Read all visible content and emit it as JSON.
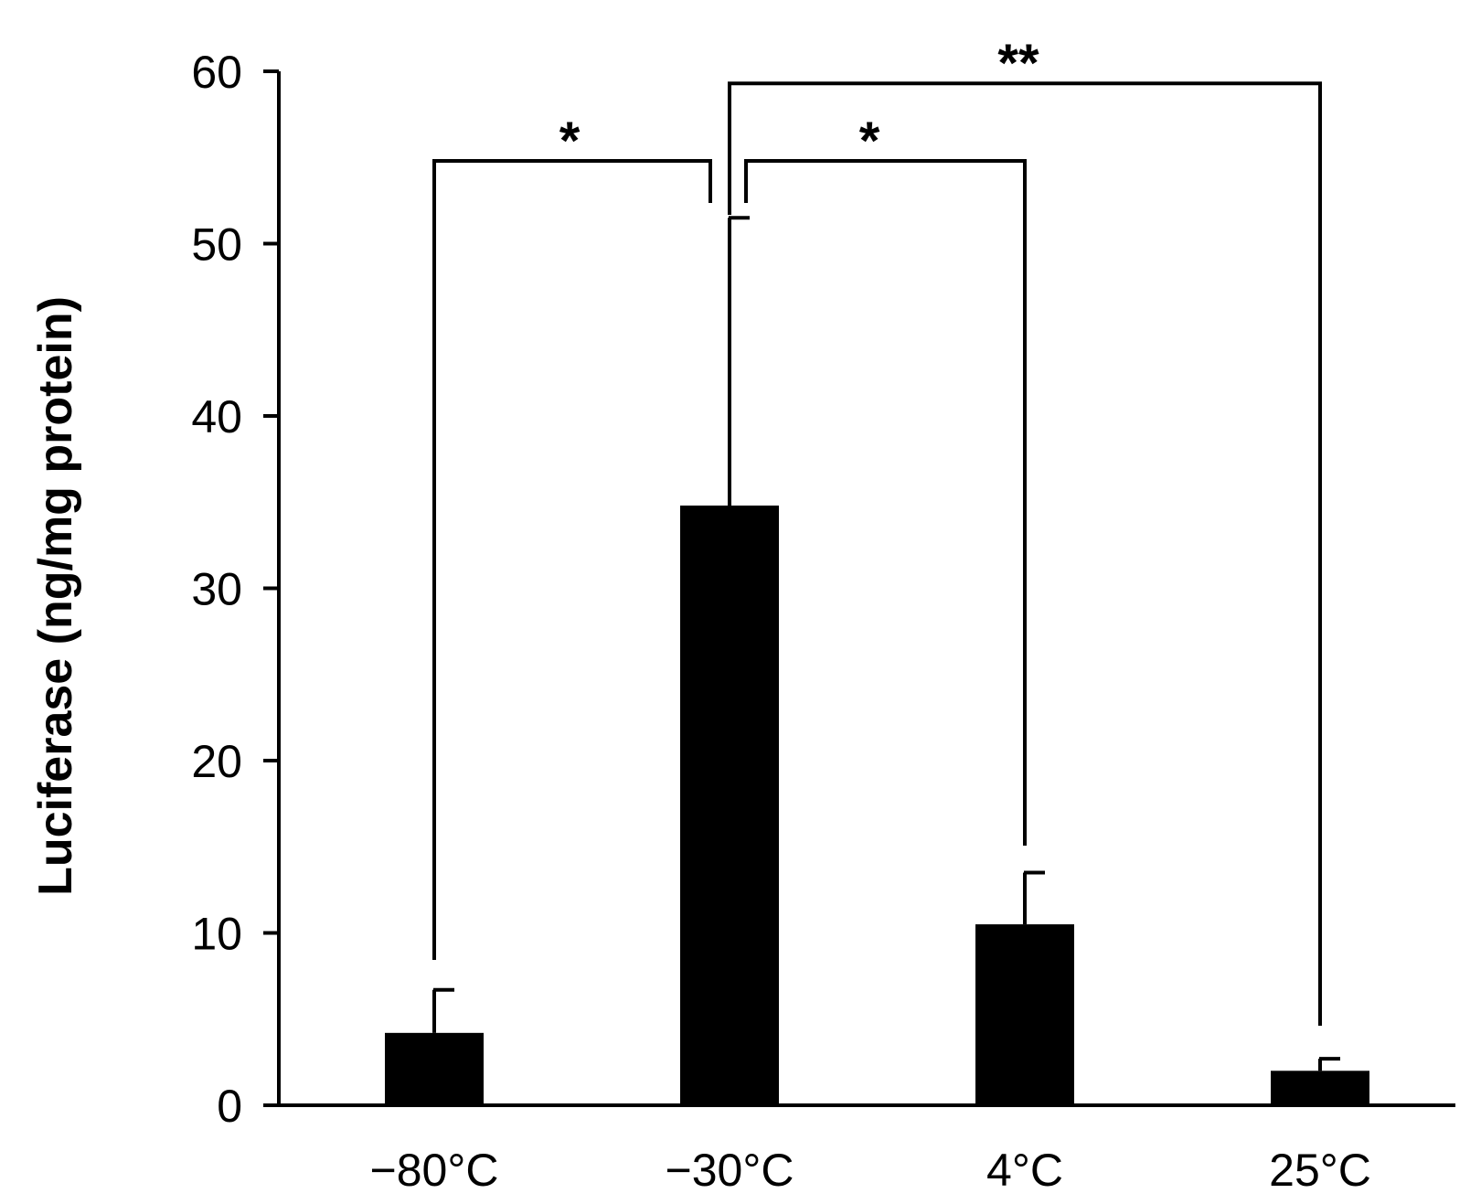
{
  "chart_data": {
    "type": "bar",
    "ylabel": "Luciferase (ng/mg protein)",
    "xlabel": "",
    "ylim": [
      0,
      60
    ],
    "yticks": [
      0,
      10,
      20,
      30,
      40,
      50,
      60
    ],
    "categories": [
      "−80°C",
      "−30°C",
      "4°C",
      "25°C"
    ],
    "values": [
      4.2,
      34.8,
      10.5,
      2.0
    ],
    "errors": [
      2.5,
      16.7,
      3.0,
      0.7
    ],
    "bar_color": "#000000",
    "grid": false,
    "significance": [
      {
        "from": 0,
        "to": 1,
        "label": "*",
        "y": 54.8
      },
      {
        "from": 1,
        "to": 2,
        "label": "*",
        "y": 54.8
      },
      {
        "from": 1,
        "to": 3,
        "label": "**",
        "y": 59.3
      }
    ]
  }
}
